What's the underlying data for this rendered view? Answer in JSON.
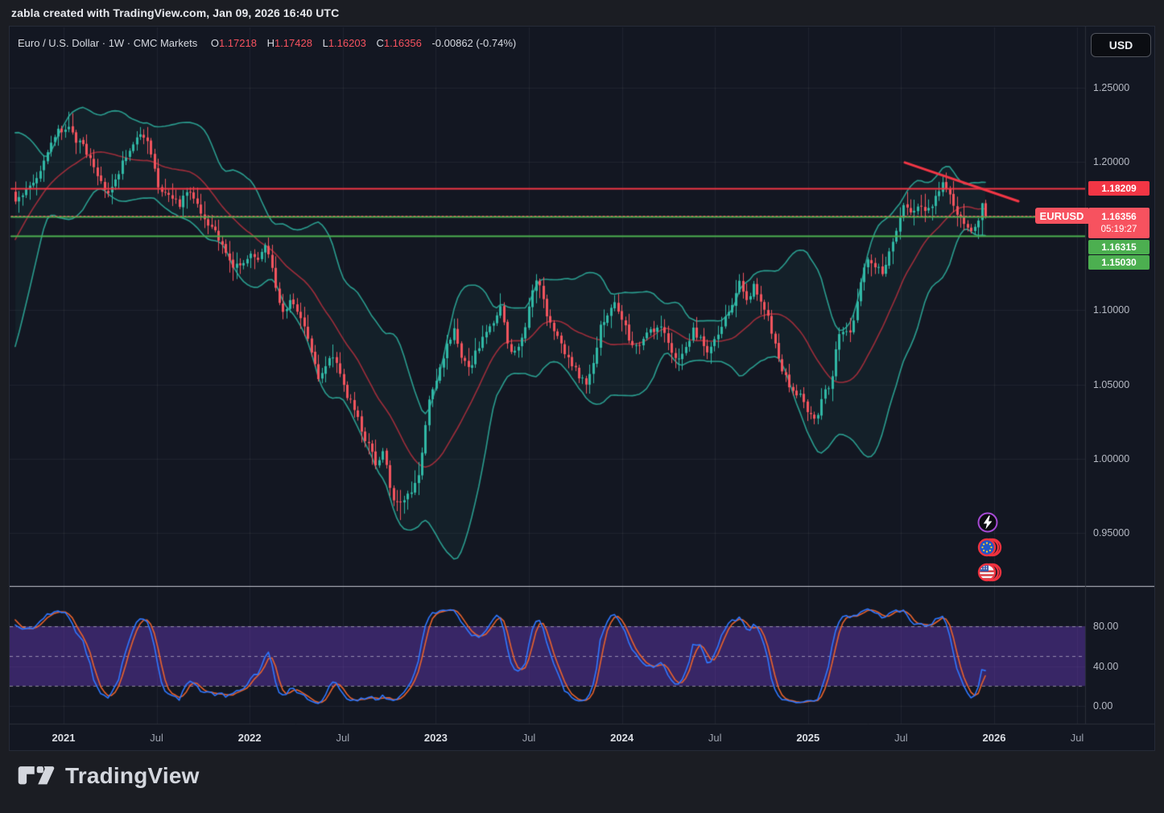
{
  "attribution": "zabla created with TradingView.com, Jan 09, 2026 16:40 UTC",
  "header": {
    "symbol_title": "Euro / U.S. Dollar · 1W · CMC Markets",
    "ohlc": {
      "o_label": "O",
      "o": "1.17218",
      "h_label": "H",
      "h": "1.17428",
      "l_label": "L",
      "l": "1.16203",
      "c_label": "C",
      "c": "1.16356",
      "change": "-0.00862 (-0.74%)"
    },
    "currency_button": "USD"
  },
  "axis": {
    "symbol_label": "EURUSD",
    "current": {
      "price_label": "1.16356",
      "countdown": "05:19:27",
      "price": 1.16356,
      "color": "#f7525f"
    }
  },
  "footer": {
    "brand": "TradingView"
  },
  "colors": {
    "background": "#131722",
    "up_candle": "#31b8a6",
    "down_candle": "#f2545e",
    "bb_band": "#2a9d8f",
    "bb_basis": "rgba(242,54,69,0.62)",
    "level_red": "#f23645",
    "level_green": "#4caf50",
    "stoch_k": "#2e77ff",
    "stoch_d": "#e8622c",
    "stoch_band": "rgba(118,62,214,0.38)",
    "grid": "rgba(255,255,255,0.055)"
  },
  "chart_data": {
    "type": "candlestick",
    "symbol": "EURUSD",
    "exchange": "CMC Markets",
    "timeframe": "1W",
    "title": "Euro / U.S. Dollar",
    "ohlc_current": {
      "open": 1.17218,
      "high": 1.17428,
      "low": 1.16203,
      "close": 1.16356,
      "change": -0.00862,
      "change_pct": -0.74
    },
    "x_range_years": [
      2020.72,
      2026.55
    ],
    "y_range_price": [
      0.93,
      1.27
    ],
    "grid": true,
    "legend_position": "none",
    "price_ticks": [
      {
        "p": 1.25,
        "label": "1.25000"
      },
      {
        "p": 1.2,
        "label": "1.20000"
      },
      {
        "p": 1.1,
        "label": "1.10000"
      },
      {
        "p": 1.05,
        "label": "1.05000"
      },
      {
        "p": 1.0,
        "label": "1.00000"
      },
      {
        "p": 0.95,
        "label": "0.95000"
      }
    ],
    "grid_prices": [
      1.25,
      1.2,
      1.15,
      1.1,
      1.05,
      1.0,
      0.95
    ],
    "time_ticks": [
      {
        "t": 2021.0,
        "label": "2021",
        "major": true
      },
      {
        "t": 2021.5,
        "label": "Jul",
        "major": false
      },
      {
        "t": 2022.0,
        "label": "2022",
        "major": true
      },
      {
        "t": 2022.5,
        "label": "Jul",
        "major": false
      },
      {
        "t": 2023.0,
        "label": "2023",
        "major": true
      },
      {
        "t": 2023.5,
        "label": "Jul",
        "major": false
      },
      {
        "t": 2024.0,
        "label": "2024",
        "major": true
      },
      {
        "t": 2024.5,
        "label": "Jul",
        "major": false
      },
      {
        "t": 2025.0,
        "label": "2025",
        "major": true
      },
      {
        "t": 2025.5,
        "label": "Jul",
        "major": false
      },
      {
        "t": 2026.0,
        "label": "2026",
        "major": true
      },
      {
        "t": 2026.5,
        "label": "Jul",
        "major": false
      }
    ],
    "levels": [
      {
        "price": 1.18209,
        "label": "1.18209",
        "color": "#f23645"
      },
      {
        "price": 1.16315,
        "label": "1.16315",
        "color": "#4caf50"
      },
      {
        "price": 1.1503,
        "label": "1.15030",
        "color": "#4caf50"
      }
    ],
    "trendline": {
      "t1": 2025.52,
      "p1": 1.1996,
      "t2": 2026.13,
      "p2": 1.1735,
      "color": "#f23645",
      "width": 3
    },
    "indicators": {
      "bollinger": {
        "length": 20,
        "mult": 2
      },
      "stochastic": {
        "k": 14,
        "d": 3,
        "upper": 80,
        "middle": 50,
        "lower": 20,
        "ticks": [
          {
            "v": 80,
            "label": "80.00"
          },
          {
            "v": 40,
            "label": "40.00"
          },
          {
            "v": 0,
            "label": "0.00"
          }
        ]
      }
    },
    "close_path": [
      [
        2020.05,
        1.108
      ],
      [
        2020.15,
        1.09
      ],
      [
        2020.2,
        1.113
      ],
      [
        2020.22,
        1.069
      ],
      [
        2020.3,
        1.082
      ],
      [
        2020.4,
        1.089
      ],
      [
        2020.5,
        1.125
      ],
      [
        2020.58,
        1.178
      ],
      [
        2020.65,
        1.185
      ],
      [
        2020.7,
        1.183
      ],
      [
        2020.74,
        1.174
      ],
      [
        2020.78,
        1.18
      ],
      [
        2020.83,
        1.187
      ],
      [
        2020.88,
        1.195
      ],
      [
        2020.93,
        1.212
      ],
      [
        2020.98,
        1.222
      ],
      [
        2021.02,
        1.223
      ],
      [
        2021.06,
        1.215
      ],
      [
        2021.1,
        1.212
      ],
      [
        2021.15,
        1.198
      ],
      [
        2021.2,
        1.186
      ],
      [
        2021.24,
        1.177
      ],
      [
        2021.28,
        1.19
      ],
      [
        2021.33,
        1.203
      ],
      [
        2021.38,
        1.214
      ],
      [
        2021.42,
        1.219
      ],
      [
        2021.46,
        1.21
      ],
      [
        2021.5,
        1.186
      ],
      [
        2021.54,
        1.18
      ],
      [
        2021.58,
        1.177
      ],
      [
        2021.62,
        1.17
      ],
      [
        2021.67,
        1.182
      ],
      [
        2021.72,
        1.173
      ],
      [
        2021.75,
        1.16
      ],
      [
        2021.8,
        1.156
      ],
      [
        2021.85,
        1.145
      ],
      [
        2021.9,
        1.128
      ],
      [
        2021.95,
        1.131
      ],
      [
        2022.0,
        1.137
      ],
      [
        2022.05,
        1.134
      ],
      [
        2022.09,
        1.145
      ],
      [
        2022.13,
        1.121
      ],
      [
        2022.17,
        1.098
      ],
      [
        2022.22,
        1.105
      ],
      [
        2022.26,
        1.098
      ],
      [
        2022.31,
        1.083
      ],
      [
        2022.37,
        1.055
      ],
      [
        2022.41,
        1.063
      ],
      [
        2022.44,
        1.072
      ],
      [
        2022.48,
        1.056
      ],
      [
        2022.52,
        1.043
      ],
      [
        2022.56,
        1.035
      ],
      [
        2022.6,
        1.018
      ],
      [
        2022.64,
        1.008
      ],
      [
        2022.68,
        0.996
      ],
      [
        2022.72,
        1.004
      ],
      [
        2022.76,
        0.976
      ],
      [
        2022.8,
        0.968
      ],
      [
        2022.84,
        0.972
      ],
      [
        2022.88,
        0.983
      ],
      [
        2022.92,
        0.996
      ],
      [
        2022.95,
        1.032
      ],
      [
        2022.98,
        1.045
      ],
      [
        2023.02,
        1.06
      ],
      [
        2023.06,
        1.078
      ],
      [
        2023.1,
        1.086
      ],
      [
        2023.14,
        1.068
      ],
      [
        2023.18,
        1.061
      ],
      [
        2023.22,
        1.073
      ],
      [
        2023.27,
        1.084
      ],
      [
        2023.31,
        1.092
      ],
      [
        2023.35,
        1.102
      ],
      [
        2023.4,
        1.07
      ],
      [
        2023.44,
        1.077
      ],
      [
        2023.48,
        1.089
      ],
      [
        2023.52,
        1.112
      ],
      [
        2023.55,
        1.122
      ],
      [
        2023.6,
        1.095
      ],
      [
        2023.64,
        1.087
      ],
      [
        2023.68,
        1.073
      ],
      [
        2023.72,
        1.066
      ],
      [
        2023.76,
        1.058
      ],
      [
        2023.8,
        1.051
      ],
      [
        2023.84,
        1.06
      ],
      [
        2023.88,
        1.088
      ],
      [
        2023.92,
        1.095
      ],
      [
        2023.96,
        1.104
      ],
      [
        2024.0,
        1.095
      ],
      [
        2024.04,
        1.078
      ],
      [
        2024.08,
        1.077
      ],
      [
        2024.12,
        1.082
      ],
      [
        2024.16,
        1.086
      ],
      [
        2024.21,
        1.089
      ],
      [
        2024.25,
        1.079
      ],
      [
        2024.29,
        1.064
      ],
      [
        2024.33,
        1.072
      ],
      [
        2024.38,
        1.087
      ],
      [
        2024.42,
        1.08
      ],
      [
        2024.46,
        1.07
      ],
      [
        2024.5,
        1.082
      ],
      [
        2024.54,
        1.091
      ],
      [
        2024.58,
        1.101
      ],
      [
        2024.63,
        1.118
      ],
      [
        2024.67,
        1.108
      ],
      [
        2024.71,
        1.116
      ],
      [
        2024.75,
        1.105
      ],
      [
        2024.79,
        1.093
      ],
      [
        2024.83,
        1.072
      ],
      [
        2024.87,
        1.057
      ],
      [
        2024.91,
        1.048
      ],
      [
        2024.95,
        1.043
      ],
      [
        2025.0,
        1.031
      ],
      [
        2025.04,
        1.026
      ],
      [
        2025.08,
        1.043
      ],
      [
        2025.12,
        1.049
      ],
      [
        2025.16,
        1.083
      ],
      [
        2025.2,
        1.085
      ],
      [
        2025.24,
        1.088
      ],
      [
        2025.28,
        1.12
      ],
      [
        2025.32,
        1.136
      ],
      [
        2025.36,
        1.13
      ],
      [
        2025.4,
        1.125
      ],
      [
        2025.44,
        1.14
      ],
      [
        2025.48,
        1.158
      ],
      [
        2025.52,
        1.172
      ],
      [
        2025.56,
        1.165
      ],
      [
        2025.6,
        1.172
      ],
      [
        2025.64,
        1.168
      ],
      [
        2025.68,
        1.174
      ],
      [
        2025.72,
        1.186
      ],
      [
        2025.76,
        1.18
      ],
      [
        2025.8,
        1.165
      ],
      [
        2025.84,
        1.157
      ],
      [
        2025.88,
        1.152
      ],
      [
        2025.91,
        1.16
      ],
      [
        2025.94,
        1.158
      ],
      [
        2025.955,
        1.17218
      ],
      [
        2025.97,
        1.16356
      ]
    ]
  }
}
